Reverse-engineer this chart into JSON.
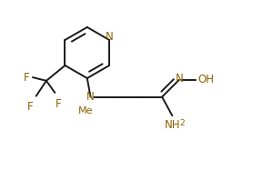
{
  "bg_color": "#ffffff",
  "line_color": "#1a1a1a",
  "text_color": "#8B6400",
  "bond_lw": 1.4,
  "font_size": 8.5,
  "sub_font_size": 6.5,
  "figsize": [
    3.0,
    1.87
  ],
  "dpi": 100,
  "xlim": [
    0.0,
    3.0
  ],
  "ylim": [
    0.0,
    2.0
  ]
}
